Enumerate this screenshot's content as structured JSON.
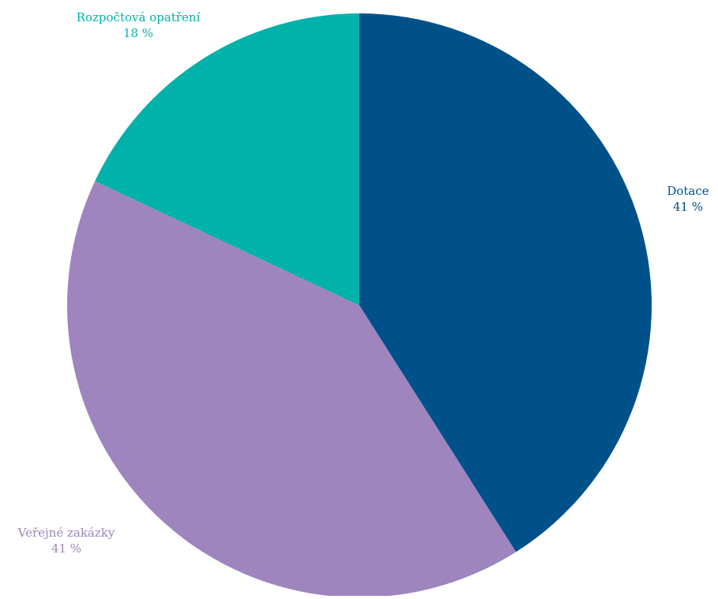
{
  "chart_data": {
    "type": "pie",
    "slices": [
      {
        "label": "Dotace",
        "value": 41,
        "value_label": "41 %",
        "color": "#00518a"
      },
      {
        "label": "Veřejné zakázky",
        "value": 41,
        "value_label": "41 %",
        "color": "#9e85bd"
      },
      {
        "label": "Rozpočtová opatření",
        "value": 18,
        "value_label": "18 %",
        "color": "#00b2aa"
      }
    ],
    "start": "12 o'clock",
    "direction": "clockwise",
    "legend": "none (labels outside slices)"
  }
}
